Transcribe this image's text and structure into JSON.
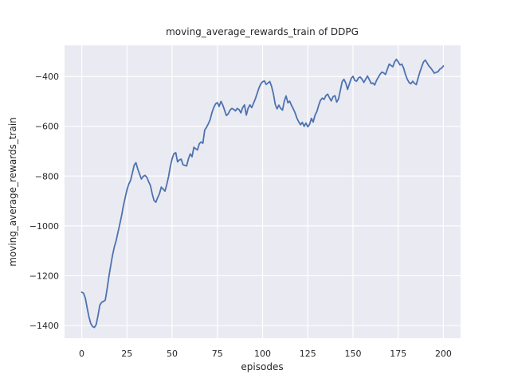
{
  "figure": {
    "title": "moving_average_rewards_train of DDPG",
    "xlabel": "episodes",
    "ylabel": "moving_average_rewards_train"
  },
  "colors": {
    "line": "#4C72B0",
    "plot_background": "#EAEAF2",
    "grid": "#FFFFFF",
    "text": "#262626",
    "figure_background": "#FFFFFF"
  },
  "chart_data": {
    "type": "line",
    "title": "moving_average_rewards_train of DDPG",
    "xlabel": "episodes",
    "ylabel": "moving_average_rewards_train",
    "grid": true,
    "legend": "none",
    "xlim": [
      -9.5,
      209.5
    ],
    "ylim": [
      -1451,
      -275
    ],
    "x_ticks": [
      {
        "value": 0,
        "label": "0"
      },
      {
        "value": 25,
        "label": "25"
      },
      {
        "value": 50,
        "label": "50"
      },
      {
        "value": 75,
        "label": "75"
      },
      {
        "value": 100,
        "label": "100"
      },
      {
        "value": 125,
        "label": "125"
      },
      {
        "value": 150,
        "label": "150"
      },
      {
        "value": 175,
        "label": "175"
      },
      {
        "value": 200,
        "label": "200"
      }
    ],
    "y_ticks": [
      {
        "value": -400,
        "label": "−400"
      },
      {
        "value": -600,
        "label": "−600"
      },
      {
        "value": -800,
        "label": "−800"
      },
      {
        "value": -1000,
        "label": "−1000"
      },
      {
        "value": -1200,
        "label": "−1200"
      },
      {
        "value": -1400,
        "label": "−1400"
      }
    ],
    "series": [
      {
        "name": "moving_average_rewards_train",
        "x_start": 0,
        "x_step": 1,
        "values": [
          -1266,
          -1270,
          -1290,
          -1330,
          -1365,
          -1392,
          -1404,
          -1408,
          -1396,
          -1360,
          -1318,
          -1307,
          -1303,
          -1298,
          -1255,
          -1205,
          -1160,
          -1120,
          -1085,
          -1060,
          -1028,
          -995,
          -960,
          -920,
          -888,
          -855,
          -832,
          -818,
          -788,
          -756,
          -746,
          -772,
          -792,
          -812,
          -801,
          -797,
          -805,
          -822,
          -838,
          -872,
          -898,
          -905,
          -886,
          -871,
          -844,
          -852,
          -860,
          -835,
          -802,
          -760,
          -730,
          -710,
          -706,
          -743,
          -735,
          -732,
          -754,
          -757,
          -759,
          -730,
          -711,
          -722,
          -684,
          -690,
          -695,
          -670,
          -663,
          -668,
          -615,
          -604,
          -590,
          -573,
          -545,
          -525,
          -510,
          -505,
          -520,
          -500,
          -515,
          -535,
          -557,
          -550,
          -535,
          -528,
          -532,
          -538,
          -528,
          -533,
          -546,
          -525,
          -514,
          -555,
          -528,
          -514,
          -525,
          -507,
          -490,
          -468,
          -446,
          -430,
          -421,
          -418,
          -432,
          -426,
          -420,
          -440,
          -470,
          -512,
          -530,
          -515,
          -528,
          -535,
          -500,
          -478,
          -506,
          -499,
          -516,
          -530,
          -546,
          -567,
          -582,
          -594,
          -584,
          -600,
          -587,
          -602,
          -592,
          -568,
          -583,
          -556,
          -541,
          -516,
          -496,
          -487,
          -492,
          -477,
          -471,
          -486,
          -498,
          -481,
          -477,
          -503,
          -490,
          -456,
          -421,
          -411,
          -426,
          -452,
          -430,
          -408,
          -399,
          -416,
          -419,
          -406,
          -402,
          -411,
          -424,
          -411,
          -398,
          -412,
          -428,
          -426,
          -434,
          -416,
          -403,
          -391,
          -382,
          -386,
          -392,
          -371,
          -350,
          -356,
          -361,
          -341,
          -331,
          -341,
          -354,
          -350,
          -366,
          -392,
          -411,
          -424,
          -429,
          -419,
          -427,
          -433,
          -406,
          -382,
          -361,
          -341,
          -334,
          -346,
          -358,
          -366,
          -376,
          -387,
          -383,
          -381,
          -371,
          -366,
          -358
        ]
      }
    ]
  }
}
